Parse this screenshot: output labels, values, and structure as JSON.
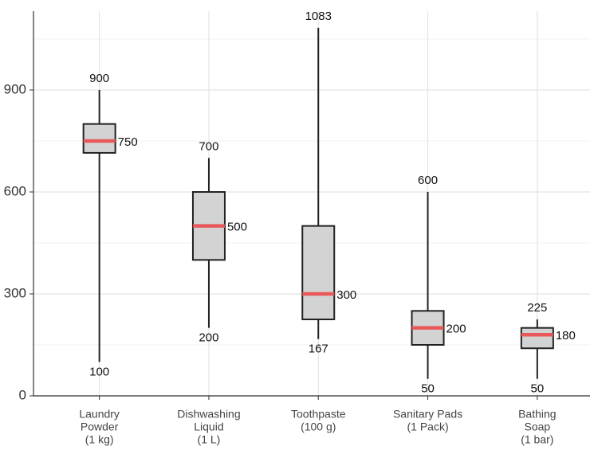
{
  "chart_data": {
    "type": "box",
    "categories": [
      [
        "Laundry",
        "Powder",
        "(1 kg)"
      ],
      [
        "Dishwashing",
        "Liquid",
        "(1 L)"
      ],
      [
        "Toothpaste",
        "(100 g)"
      ],
      [
        "Sanitary Pads",
        "(1 Pack)"
      ],
      [
        "Bathing",
        "Soap",
        "(1 bar)"
      ]
    ],
    "series": [
      {
        "min": 100,
        "q1": 715,
        "median": 750,
        "q3": 800,
        "max": 900
      },
      {
        "min": 200,
        "q1": 400,
        "median": 500,
        "q3": 600,
        "max": 700
      },
      {
        "min": 167,
        "q1": 225,
        "median": 300,
        "q3": 500,
        "max": 1083
      },
      {
        "min": 50,
        "q1": 150,
        "median": 200,
        "q3": 250,
        "max": 600
      },
      {
        "min": 50,
        "q1": 140,
        "median": 180,
        "q3": 200,
        "max": 225
      }
    ],
    "box_color": "#d3d3d3",
    "median_color": "#e8585a",
    "ylim": [
      0,
      1132
    ],
    "yticks": [
      0,
      300,
      600,
      900
    ],
    "minor_yticks": [
      150,
      450,
      750,
      1050
    ],
    "grid": true
  }
}
